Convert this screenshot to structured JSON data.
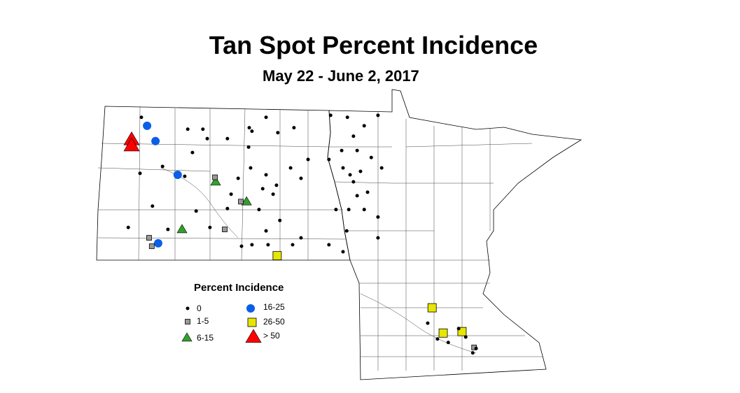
{
  "title": "Tan Spot Percent Incidence",
  "subtitle": "May 22 - June 2, 2017",
  "legend": {
    "title": "Percent Incidence",
    "items": [
      {
        "label": "0",
        "symbol": "dot",
        "color": "#000000"
      },
      {
        "label": "1-5",
        "symbol": "square",
        "color": "#999999"
      },
      {
        "label": "6-15",
        "symbol": "triangle",
        "color": "#33a02c"
      },
      {
        "label": "16-25",
        "symbol": "circle",
        "color": "#0a5fe6"
      },
      {
        "label": "26-50",
        "symbol": "square",
        "color": "#e6e600"
      },
      {
        "label": "> 50",
        "symbol": "triangle",
        "color": "#ff0000"
      }
    ]
  },
  "sites": [
    {
      "lon": -103.05,
      "lat": 48.37,
      "cat": 5
    },
    {
      "lon": -103.05,
      "lat": 48.25,
      "cat": 5
    },
    {
      "lon": -102.59,
      "lat": 48.65,
      "cat": 3
    },
    {
      "lon": -102.34,
      "lat": 48.34,
      "cat": 3
    },
    {
      "lon": -101.68,
      "lat": 47.66,
      "cat": 3
    },
    {
      "lon": -102.26,
      "lat": 46.28,
      "cat": 3
    },
    {
      "lon": -100.55,
      "lat": 47.52,
      "cat": 2
    },
    {
      "lon": -99.63,
      "lat": 47.12,
      "cat": 2
    },
    {
      "lon": -101.55,
      "lat": 46.56,
      "cat": 2
    },
    {
      "lon": -100.57,
      "lat": 47.61,
      "cat": 1
    },
    {
      "lon": -99.8,
      "lat": 47.12,
      "cat": 1
    },
    {
      "lon": -100.28,
      "lat": 46.56,
      "cat": 1
    },
    {
      "lon": -102.53,
      "lat": 46.39,
      "cat": 1
    },
    {
      "lon": -102.45,
      "lat": 46.22,
      "cat": 1
    },
    {
      "lon": -92.86,
      "lat": 44.18,
      "cat": 1
    },
    {
      "lon": -98.72,
      "lat": 46.03,
      "cat": 4
    },
    {
      "lon": -94.11,
      "lat": 44.98,
      "cat": 4
    },
    {
      "lon": -93.78,
      "lat": 44.47,
      "cat": 4
    },
    {
      "lon": -93.22,
      "lat": 44.5,
      "cat": 4
    },
    {
      "lon": -102.76,
      "lat": 48.82,
      "cat": 0
    },
    {
      "lon": -101.38,
      "lat": 48.58,
      "cat": 0
    },
    {
      "lon": -100.93,
      "lat": 48.58,
      "cat": 0
    },
    {
      "lon": -100.8,
      "lat": 48.39,
      "cat": 0
    },
    {
      "lon": -101.24,
      "lat": 48.11,
      "cat": 0
    },
    {
      "lon": -100.2,
      "lat": 48.39,
      "cat": 0
    },
    {
      "lon": -99.55,
      "lat": 48.61,
      "cat": 0
    },
    {
      "lon": -99.47,
      "lat": 48.54,
      "cat": 0
    },
    {
      "lon": -99.05,
      "lat": 48.82,
      "cat": 0
    },
    {
      "lon": -98.7,
      "lat": 48.51,
      "cat": 0
    },
    {
      "lon": -98.22,
      "lat": 48.61,
      "cat": 0
    },
    {
      "lon": -97.13,
      "lat": 48.86,
      "cat": 0
    },
    {
      "lon": -96.63,
      "lat": 48.82,
      "cat": 0
    },
    {
      "lon": -96.13,
      "lat": 48.65,
      "cat": 0
    },
    {
      "lon": -95.72,
      "lat": 48.86,
      "cat": 0
    },
    {
      "lon": -96.45,
      "lat": 48.44,
      "cat": 0
    },
    {
      "lon": -96.8,
      "lat": 48.15,
      "cat": 0
    },
    {
      "lon": -96.34,
      "lat": 48.15,
      "cat": 0
    },
    {
      "lon": -95.92,
      "lat": 48.01,
      "cat": 0
    },
    {
      "lon": -95.61,
      "lat": 47.8,
      "cat": 0
    },
    {
      "lon": -97.18,
      "lat": 47.97,
      "cat": 0
    },
    {
      "lon": -97.8,
      "lat": 47.97,
      "cat": 0
    },
    {
      "lon": -98.32,
      "lat": 47.8,
      "cat": 0
    },
    {
      "lon": -98.01,
      "lat": 47.59,
      "cat": 0
    },
    {
      "lon": -99.57,
      "lat": 48.22,
      "cat": 0
    },
    {
      "lon": -99.51,
      "lat": 47.8,
      "cat": 0
    },
    {
      "lon": -99.88,
      "lat": 47.59,
      "cat": 0
    },
    {
      "lon": -99.05,
      "lat": 47.66,
      "cat": 0
    },
    {
      "lon": -98.74,
      "lat": 47.45,
      "cat": 0
    },
    {
      "lon": -99.15,
      "lat": 47.38,
      "cat": 0
    },
    {
      "lon": -98.84,
      "lat": 47.27,
      "cat": 0
    },
    {
      "lon": -100.09,
      "lat": 47.27,
      "cat": 0
    },
    {
      "lon": -100.2,
      "lat": 46.98,
      "cat": 0
    },
    {
      "lon": -99.26,
      "lat": 46.96,
      "cat": 0
    },
    {
      "lon": -98.64,
      "lat": 46.74,
      "cat": 0
    },
    {
      "lon": -98.01,
      "lat": 46.39,
      "cat": 0
    },
    {
      "lon": -99.05,
      "lat": 46.53,
      "cat": 0
    },
    {
      "lon": -99.78,
      "lat": 46.22,
      "cat": 0
    },
    {
      "lon": -99.47,
      "lat": 46.25,
      "cat": 0
    },
    {
      "lon": -98.99,
      "lat": 46.25,
      "cat": 0
    },
    {
      "lon": -98.26,
      "lat": 46.25,
      "cat": 0
    },
    {
      "lon": -97.18,
      "lat": 46.25,
      "cat": 0
    },
    {
      "lon": -96.76,
      "lat": 46.11,
      "cat": 0
    },
    {
      "lon": -96.65,
      "lat": 46.53,
      "cat": 0
    },
    {
      "lon": -96.97,
      "lat": 46.96,
      "cat": 0
    },
    {
      "lon": -96.59,
      "lat": 46.96,
      "cat": 0
    },
    {
      "lon": -96.34,
      "lat": 47.24,
      "cat": 0
    },
    {
      "lon": -96.03,
      "lat": 47.31,
      "cat": 0
    },
    {
      "lon": -96.13,
      "lat": 46.96,
      "cat": 0
    },
    {
      "lon": -95.72,
      "lat": 46.81,
      "cat": 0
    },
    {
      "lon": -95.72,
      "lat": 46.39,
      "cat": 0
    },
    {
      "lon": -96.55,
      "lat": 47.66,
      "cat": 0
    },
    {
      "lon": -96.76,
      "lat": 47.8,
      "cat": 0
    },
    {
      "lon": -96.24,
      "lat": 47.73,
      "cat": 0
    },
    {
      "lon": -96.45,
      "lat": 47.52,
      "cat": 0
    },
    {
      "lon": -102.8,
      "lat": 47.69,
      "cat": 0
    },
    {
      "lon": -101.47,
      "lat": 47.63,
      "cat": 0
    },
    {
      "lon": -102.13,
      "lat": 47.83,
      "cat": 0
    },
    {
      "lon": -102.43,
      "lat": 47.03,
      "cat": 0
    },
    {
      "lon": -103.15,
      "lat": 46.6,
      "cat": 0
    },
    {
      "lon": -101.97,
      "lat": 46.56,
      "cat": 0
    },
    {
      "lon": -100.72,
      "lat": 46.6,
      "cat": 0
    },
    {
      "lon": -101.13,
      "lat": 46.93,
      "cat": 0
    },
    {
      "lon": -93.95,
      "lat": 44.35,
      "cat": 0
    },
    {
      "lon": -93.63,
      "lat": 44.28,
      "cat": 0
    },
    {
      "lon": -93.32,
      "lat": 44.56,
      "cat": 0
    },
    {
      "lon": -93.11,
      "lat": 44.39,
      "cat": 0
    },
    {
      "lon": -92.9,
      "lat": 44.07,
      "cat": 0
    },
    {
      "lon": -92.8,
      "lat": 44.16,
      "cat": 0
    },
    {
      "lon": -94.24,
      "lat": 44.67,
      "cat": 0
    }
  ]
}
